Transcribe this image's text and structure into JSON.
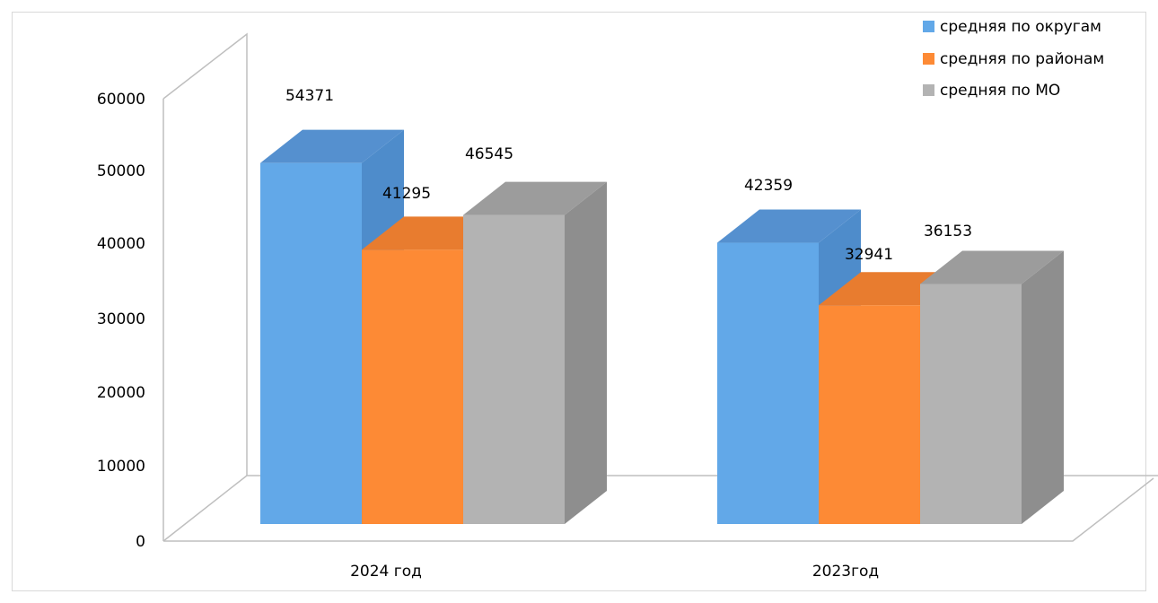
{
  "chart_data": {
    "type": "bar",
    "categories": [
      "2024 год",
      "2023год"
    ],
    "series": [
      {
        "name": "средняя по округам",
        "values": [
          54371,
          42359
        ],
        "color": "#62a8e8",
        "side_color": "#4e8ccb",
        "top_color": "#5590cf"
      },
      {
        "name": "средняя по районам",
        "values": [
          41295,
          32941
        ],
        "color": "#fd8a35",
        "side_color": "#d8702a",
        "top_color": "#e87c2f"
      },
      {
        "name": "средняя по МО",
        "values": [
          46545,
          36153
        ],
        "color": "#b3b3b3",
        "side_color": "#8e8e8e",
        "top_color": "#9c9c9c"
      }
    ],
    "y_ticks": [
      "0",
      "10000",
      "20000",
      "30000",
      "40000",
      "50000",
      "60000"
    ],
    "ylim": [
      0,
      60000
    ],
    "grid": false,
    "legend_position": "top-right",
    "style": "3d-clustered-column"
  }
}
